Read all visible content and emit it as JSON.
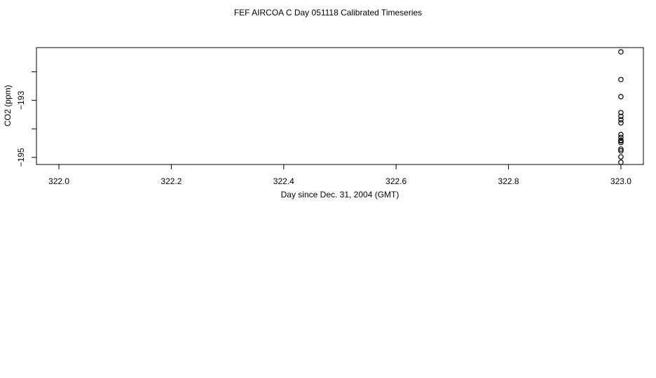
{
  "chart_data": {
    "type": "scatter",
    "title": "FEF AIRCOA C  Day 051118  Calibrated Timeseries",
    "xlabel": "Day since Dec. 31, 2004 (GMT)",
    "ylabel": "CO2 (ppm)",
    "xlim": [
      321.96,
      323.04
    ],
    "ylim": [
      -195.25,
      -191.15
    ],
    "x_ticks": [
      322.0,
      322.2,
      322.4,
      322.6,
      322.8,
      323.0
    ],
    "x_tick_labels": [
      "322.0",
      "322.2",
      "322.4",
      "322.6",
      "322.8",
      "323.0"
    ],
    "y_ticks": [
      -195,
      -194,
      -193,
      -192
    ],
    "y_tick_labels": [
      "−195",
      "",
      "−193",
      ""
    ],
    "grid": false,
    "legend": "none",
    "series": [
      {
        "marker": "open-circle",
        "x": [
          323.0,
          323.0,
          323.0,
          323.0,
          323.0,
          323.0,
          323.0,
          323.0,
          323.0,
          323.0,
          323.0,
          323.0,
          323.0,
          323.0,
          323.0,
          323.0
        ],
        "y": [
          -191.3,
          -192.27,
          -192.87,
          -193.43,
          -193.56,
          -193.68,
          -193.79,
          -194.2,
          -194.3,
          -194.42,
          -194.48,
          -194.71,
          -194.77,
          -194.98,
          -195.17,
          -194.4
        ]
      }
    ]
  }
}
